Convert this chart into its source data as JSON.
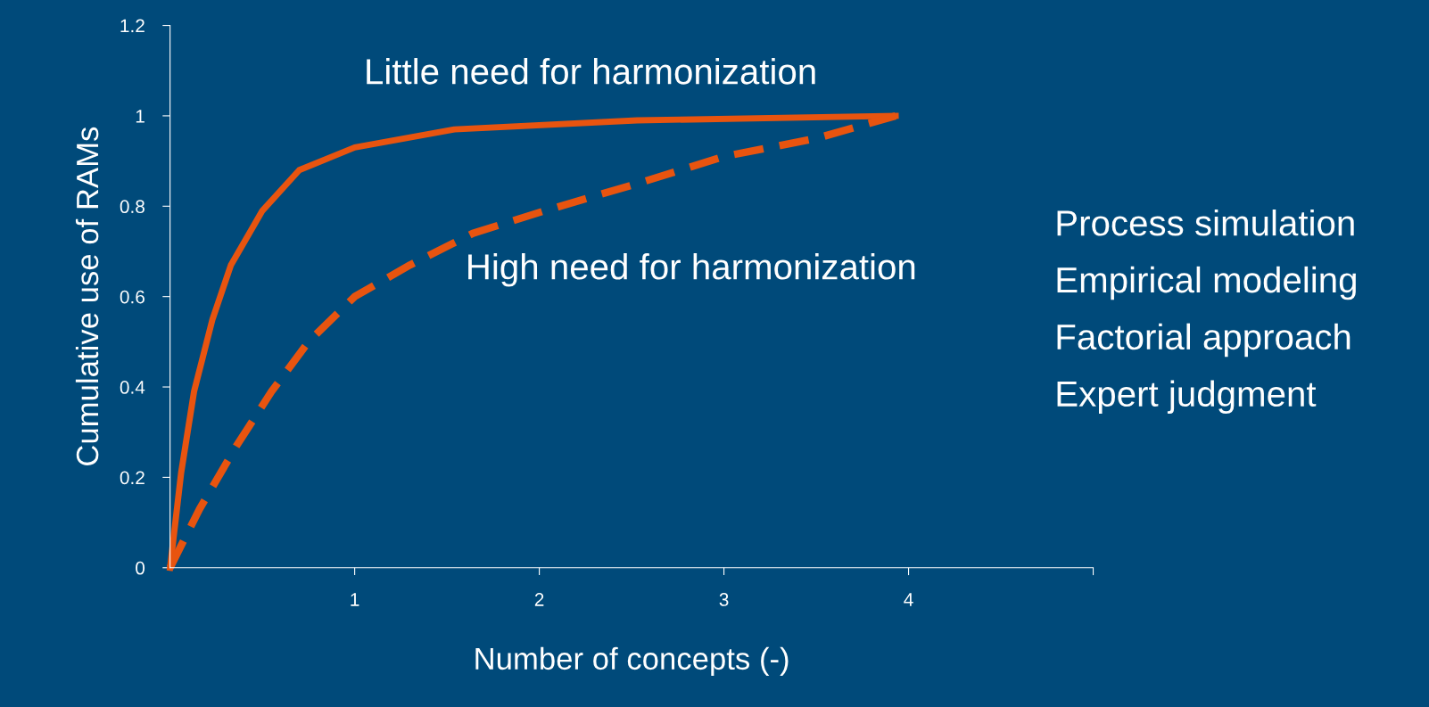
{
  "chart_data": {
    "type": "line",
    "xlabel": "Number of concepts (-)",
    "ylabel": "Cumulative use of RAMs",
    "xlim": [
      0,
      5
    ],
    "xticks": [
      1,
      2,
      3,
      4,
      {
        "value": 5,
        "label": null
      }
    ],
    "ylim": [
      0,
      1.2
    ],
    "yticks": [
      0,
      0.2,
      0.4,
      0.6,
      0.8,
      1,
      1.2
    ],
    "grid": false,
    "legend": false,
    "marker": "none",
    "series": [
      {
        "name": "Little need for harmonization",
        "color": "#e8540f",
        "line_style": "solid",
        "x": [
          0,
          0.06,
          0.13,
          0.23,
          0.33,
          0.5,
          0.7,
          1.0,
          1.54,
          2.53,
          3.93
        ],
        "values": [
          0,
          0.21,
          0.39,
          0.55,
          0.67,
          0.79,
          0.88,
          0.93,
          0.97,
          0.99,
          1.0
        ]
      },
      {
        "name": "High need for harmonization",
        "color": "#e8540f",
        "line_style": "dashed",
        "x": [
          0,
          0.16,
          0.36,
          0.55,
          0.75,
          1.0,
          1.3,
          1.64,
          2.03,
          2.53,
          3.0,
          3.5,
          3.93
        ],
        "values": [
          0,
          0.13,
          0.27,
          0.39,
          0.5,
          0.6,
          0.67,
          0.74,
          0.79,
          0.85,
          0.91,
          0.95,
          1.0
        ]
      }
    ],
    "annotations": [
      "Process simulation",
      "Empirical modeling",
      "Factorial approach",
      "Expert judgment"
    ]
  }
}
